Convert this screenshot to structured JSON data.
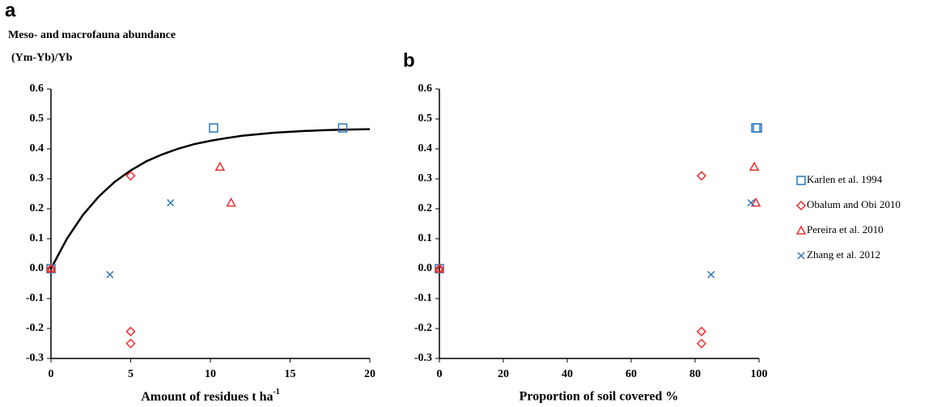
{
  "chart_data": [
    {
      "type": "scatter",
      "panel": "a",
      "title": "Meso- and macrofauna abundance",
      "subtitle": "(Ym-Yb)/Yb",
      "xlabel": "Amount of residues t ha",
      "xlabel_superscript": "-1",
      "xlim": [
        0,
        20
      ],
      "xticks": [
        0,
        5,
        10,
        15,
        20
      ],
      "ylim": [
        -0.3,
        0.6
      ],
      "yticks": [
        -0.3,
        -0.2,
        -0.1,
        {
          "value": 0,
          "label": "0.0"
        },
        0.1,
        0.2,
        0.3,
        0.4,
        0.5,
        0.6
      ],
      "series": [
        {
          "color": "#2e75b6",
          "marker": "square",
          "x": [
            0,
            10.2,
            18.3
          ],
          "values": [
            0,
            0.47,
            0.47
          ]
        },
        {
          "color": "#e8312f",
          "marker": "diamond",
          "x": [
            0,
            5,
            5,
            5
          ],
          "values": [
            0,
            0.31,
            -0.21,
            -0.25
          ]
        },
        {
          "color": "#e8312f",
          "marker": "triangle",
          "x": [
            0,
            10.6,
            11.3
          ],
          "values": [
            0,
            0.34,
            0.22
          ]
        },
        {
          "color": "#2e75b6",
          "marker": "x",
          "x": [
            3.7,
            7.5
          ],
          "values": [
            -0.02,
            0.22
          ]
        }
      ],
      "curve": {
        "color": "#000000",
        "x": [
          0,
          1,
          2,
          3,
          4,
          5,
          6,
          7,
          8,
          9,
          10,
          11,
          12,
          13,
          14,
          15,
          16,
          17,
          18,
          19,
          20
        ],
        "values": [
          0,
          0.1,
          0.179,
          0.241,
          0.29,
          0.328,
          0.359,
          0.382,
          0.401,
          0.416,
          0.427,
          0.436,
          0.444,
          0.449,
          0.454,
          0.457,
          0.46,
          0.462,
          0.464,
          0.465,
          0.466
        ]
      }
    },
    {
      "type": "scatter",
      "panel": "b",
      "xlabel": "Proportion of soil covered %",
      "xlim": [
        0,
        100
      ],
      "xticks": [
        0,
        20,
        40,
        60,
        80,
        100
      ],
      "ylim": [
        -0.3,
        0.6
      ],
      "yticks": [
        -0.3,
        -0.2,
        -0.1,
        {
          "value": 0,
          "label": "0.0"
        },
        0.1,
        0.2,
        0.3,
        0.4,
        0.5,
        0.6
      ],
      "series": [
        {
          "name": "Karlen et al. 1994",
          "color": "#2e75b6",
          "marker": "square",
          "x": [
            0,
            99,
            99.5
          ],
          "values": [
            0,
            0.47,
            0.47
          ]
        },
        {
          "name": "Obalum and Obi 2010",
          "color": "#e8312f",
          "marker": "diamond",
          "x": [
            0,
            82,
            82,
            82
          ],
          "values": [
            0,
            0.31,
            -0.21,
            -0.25
          ]
        },
        {
          "name": "Pereira et al. 2010",
          "color": "#e8312f",
          "marker": "triangle",
          "x": [
            0,
            98.5,
            99
          ],
          "values": [
            0,
            0.34,
            0.22
          ]
        },
        {
          "name": "Zhang et al. 2012",
          "color": "#2e75b6",
          "marker": "x",
          "x": [
            85,
            97.5
          ],
          "values": [
            -0.02,
            0.22
          ]
        }
      ],
      "legend": "right"
    }
  ]
}
